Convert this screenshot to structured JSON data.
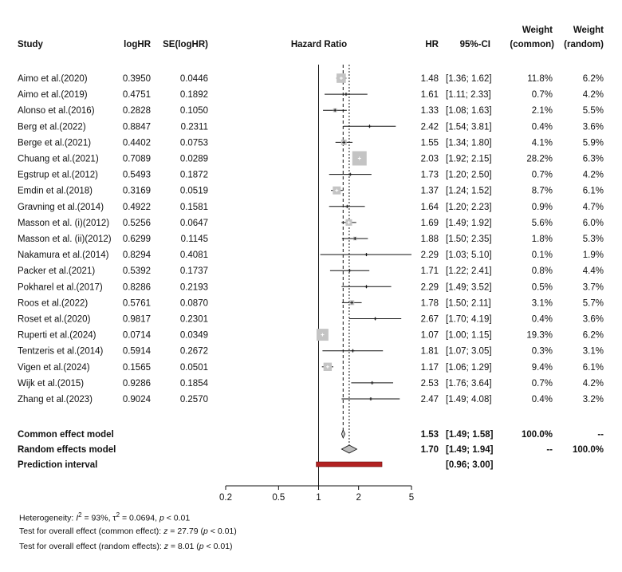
{
  "chart_data": {
    "type": "forest",
    "headers": {
      "study": "Study",
      "loghr": "logHR",
      "se": "SE(logHR)",
      "plot": "Hazard Ratio",
      "hr": "HR",
      "ci": "95%-CI",
      "weight_common_1": "Weight",
      "weight_common_2": "(common)",
      "weight_random_1": "Weight",
      "weight_random_2": "(random)"
    },
    "studies": [
      {
        "study": "Aimo et al.(2020)",
        "loghr": "0.3950",
        "se": "0.0446",
        "hr": 1.48,
        "lower": 1.36,
        "upper": 1.62,
        "hr_text": "1.48",
        "ci_text": "[1.36; 1.62]",
        "w_common": "11.8%",
        "w_random": "6.2%"
      },
      {
        "study": "Aimo et al.(2019)",
        "loghr": "0.4751",
        "se": "0.1892",
        "hr": 1.61,
        "lower": 1.11,
        "upper": 2.33,
        "hr_text": "1.61",
        "ci_text": "[1.11; 2.33]",
        "w_common": "0.7%",
        "w_random": "4.2%"
      },
      {
        "study": "Alonso et al.(2016)",
        "loghr": "0.2828",
        "se": "0.1050",
        "hr": 1.33,
        "lower": 1.08,
        "upper": 1.63,
        "hr_text": "1.33",
        "ci_text": "[1.08; 1.63]",
        "w_common": "2.1%",
        "w_random": "5.5%"
      },
      {
        "study": "Berg et al.(2022)",
        "loghr": "0.8847",
        "se": "0.2311",
        "hr": 2.42,
        "lower": 1.54,
        "upper": 3.81,
        "hr_text": "2.42",
        "ci_text": "[1.54; 3.81]",
        "w_common": "0.4%",
        "w_random": "3.6%"
      },
      {
        "study": "Berge et al.(2021)",
        "loghr": "0.4402",
        "se": "0.0753",
        "hr": 1.55,
        "lower": 1.34,
        "upper": 1.8,
        "hr_text": "1.55",
        "ci_text": "[1.34; 1.80]",
        "w_common": "4.1%",
        "w_random": "5.9%"
      },
      {
        "study": "Chuang et al.(2021)",
        "loghr": "0.7089",
        "se": "0.0289",
        "hr": 2.03,
        "lower": 1.92,
        "upper": 2.15,
        "hr_text": "2.03",
        "ci_text": "[1.92; 2.15]",
        "w_common": "28.2%",
        "w_random": "6.3%"
      },
      {
        "study": "Egstrup et al.(2012)",
        "loghr": "0.5493",
        "se": "0.1872",
        "hr": 1.73,
        "lower": 1.2,
        "upper": 2.5,
        "hr_text": "1.73",
        "ci_text": "[1.20; 2.50]",
        "w_common": "0.7%",
        "w_random": "4.2%"
      },
      {
        "study": "Emdin et al.(2018)",
        "loghr": "0.3169",
        "se": "0.0519",
        "hr": 1.37,
        "lower": 1.24,
        "upper": 1.52,
        "hr_text": "1.37",
        "ci_text": "[1.24; 1.52]",
        "w_common": "8.7%",
        "w_random": "6.1%"
      },
      {
        "study": "Gravning et al.(2014)",
        "loghr": "0.4922",
        "se": "0.1581",
        "hr": 1.64,
        "lower": 1.2,
        "upper": 2.23,
        "hr_text": "1.64",
        "ci_text": "[1.20; 2.23]",
        "w_common": "0.9%",
        "w_random": "4.7%"
      },
      {
        "study": "Masson et al. (i)(2012)",
        "loghr": "0.5256",
        "se": "0.0647",
        "hr": 1.69,
        "lower": 1.49,
        "upper": 1.92,
        "hr_text": "1.69",
        "ci_text": "[1.49; 1.92]",
        "w_common": "5.6%",
        "w_random": "6.0%"
      },
      {
        "study": "Masson et al. (ii)(2012)",
        "loghr": "0.6299",
        "se": "0.1145",
        "hr": 1.88,
        "lower": 1.5,
        "upper": 2.35,
        "hr_text": "1.88",
        "ci_text": "[1.50; 2.35]",
        "w_common": "1.8%",
        "w_random": "5.3%"
      },
      {
        "study": "Nakamura et al.(2014)",
        "loghr": "0.8294",
        "se": "0.4081",
        "hr": 2.29,
        "lower": 1.03,
        "upper": 5.1,
        "hr_text": "2.29",
        "ci_text": "[1.03; 5.10]",
        "w_common": "0.1%",
        "w_random": "1.9%"
      },
      {
        "study": "Packer et al.(2021)",
        "loghr": "0.5392",
        "se": "0.1737",
        "hr": 1.71,
        "lower": 1.22,
        "upper": 2.41,
        "hr_text": "1.71",
        "ci_text": "[1.22; 2.41]",
        "w_common": "0.8%",
        "w_random": "4.4%"
      },
      {
        "study": "Pokharel et al.(2017)",
        "loghr": "0.8286",
        "se": "0.2193",
        "hr": 2.29,
        "lower": 1.49,
        "upper": 3.52,
        "hr_text": "2.29",
        "ci_text": "[1.49; 3.52]",
        "w_common": "0.5%",
        "w_random": "3.7%"
      },
      {
        "study": "Roos et al.(2022)",
        "loghr": "0.5761",
        "se": "0.0870",
        "hr": 1.78,
        "lower": 1.5,
        "upper": 2.11,
        "hr_text": "1.78",
        "ci_text": "[1.50; 2.11]",
        "w_common": "3.1%",
        "w_random": "5.7%"
      },
      {
        "study": "Roset et al.(2020)",
        "loghr": "0.9817",
        "se": "0.2301",
        "hr": 2.67,
        "lower": 1.7,
        "upper": 4.19,
        "hr_text": "2.67",
        "ci_text": "[1.70; 4.19]",
        "w_common": "0.4%",
        "w_random": "3.6%"
      },
      {
        "study": "Ruperti et al.(2024)",
        "loghr": "0.0714",
        "se": "0.0349",
        "hr": 1.07,
        "lower": 1.0,
        "upper": 1.15,
        "hr_text": "1.07",
        "ci_text": "[1.00; 1.15]",
        "w_common": "19.3%",
        "w_random": "6.2%"
      },
      {
        "study": "Tentzeris et al.(2014)",
        "loghr": "0.5914",
        "se": "0.2672",
        "hr": 1.81,
        "lower": 1.07,
        "upper": 3.05,
        "hr_text": "1.81",
        "ci_text": "[1.07; 3.05]",
        "w_common": "0.3%",
        "w_random": "3.1%"
      },
      {
        "study": "Vigen et al.(2024)",
        "loghr": "0.1565",
        "se": "0.0501",
        "hr": 1.17,
        "lower": 1.06,
        "upper": 1.29,
        "hr_text": "1.17",
        "ci_text": "[1.06; 1.29]",
        "w_common": "9.4%",
        "w_random": "6.1%"
      },
      {
        "study": "Wijk et al.(2015)",
        "loghr": "0.9286",
        "se": "0.1854",
        "hr": 2.53,
        "lower": 1.76,
        "upper": 3.64,
        "hr_text": "2.53",
        "ci_text": "[1.76; 3.64]",
        "w_common": "0.7%",
        "w_random": "4.2%"
      },
      {
        "study": "Zhang et al.(2023)",
        "loghr": "0.9024",
        "se": "0.2570",
        "hr": 2.47,
        "lower": 1.49,
        "upper": 4.08,
        "hr_text": "2.47",
        "ci_text": "[1.49; 4.08]",
        "w_common": "0.4%",
        "w_random": "3.2%"
      }
    ],
    "summary": {
      "common": {
        "label": "Common effect model",
        "hr": 1.53,
        "lower": 1.49,
        "upper": 1.58,
        "hr_text": "1.53",
        "ci_text": "[1.49; 1.58]",
        "w_common": "100.0%",
        "w_random": "--"
      },
      "random": {
        "label": "Random effects model",
        "hr": 1.7,
        "lower": 1.49,
        "upper": 1.94,
        "hr_text": "1.70",
        "ci_text": "[1.49; 1.94]",
        "w_common": "--",
        "w_random": "100.0%"
      },
      "prediction": {
        "label": "Prediction interval",
        "lower": 0.96,
        "upper": 3.0,
        "ci_text": "[0.96; 3.00]"
      }
    },
    "axis": {
      "scale": "log",
      "ticks": [
        0.2,
        0.5,
        1,
        2,
        5
      ],
      "tick_labels": [
        "0.2",
        "0.5",
        "1",
        "2",
        "5"
      ],
      "xlim": [
        0.2,
        5
      ],
      "null_line": 1
    },
    "footer": {
      "het_prefix": "Heterogeneity: ",
      "het_i2": "I",
      "het_i2_sup": "2",
      "het_i2_val": " = 93%, ",
      "het_tau": "τ",
      "het_tau_sup": "2",
      "het_tau_val": " = 0.0694, ",
      "het_p": "p",
      "het_p_val": " < 0.01",
      "common_prefix": "Test for overall effect (common effect): ",
      "common_z": "z",
      "common_z_val": " = 27.79 (",
      "common_p": "p",
      "common_p_val": " < 0.01)",
      "random_prefix": "Test for overall effect (random effects): ",
      "random_z": "z",
      "random_z_val": " = 8.01 (",
      "random_p": "p",
      "random_p_val": " < 0.01)"
    },
    "colors": {
      "box": "#c4c4c4",
      "line": "#111111",
      "diamond_common": "#c8c8c8",
      "diamond_random": "#bdbdbd",
      "prediction_bar": "#b22222"
    }
  }
}
